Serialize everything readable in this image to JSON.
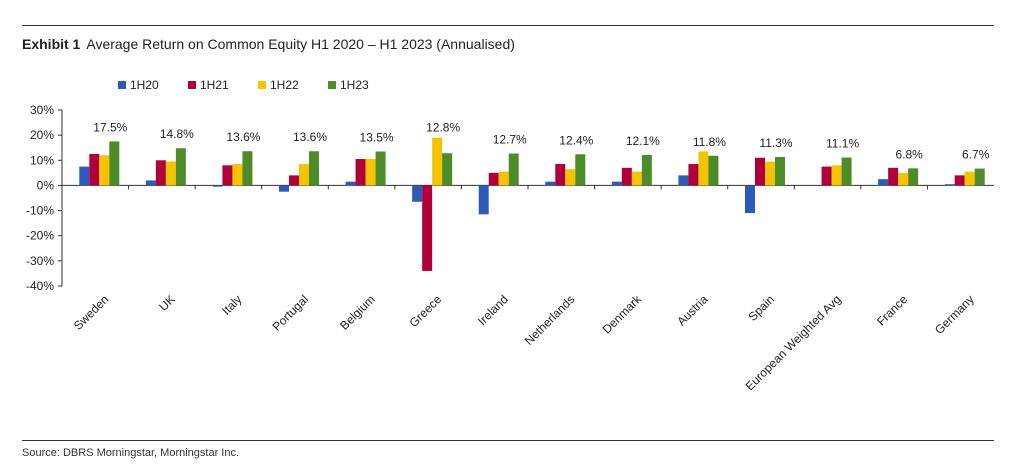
{
  "header": {
    "exhibit": "Exhibit 1",
    "title": "Average Return on Common Equity H1 2020 – H1 2023 (Annualised)"
  },
  "footer": {
    "source": "Source: DBRS Morningstar, Morningstar Inc."
  },
  "chart_data": {
    "type": "bar",
    "title": "Average Return on Common Equity H1 2020 – H1 2023 (Annualised)",
    "xlabel": "",
    "ylabel": "",
    "ylim": [
      -40,
      30
    ],
    "yticks": [
      "30%",
      "20%",
      "10%",
      "0%",
      "-10%",
      "-20%",
      "-30%",
      "-40%"
    ],
    "ytick_values": [
      30,
      20,
      10,
      0,
      -10,
      -20,
      -30,
      -40
    ],
    "grid": false,
    "legend_position": "top-left",
    "categories": [
      "Sweden",
      "UK",
      "Italy",
      "Portugal",
      "Belgium",
      "Greece",
      "Ireland",
      "Netherlands",
      "Denmark",
      "Austria",
      "Spain",
      "European Weighted Avg",
      "France",
      "Germany"
    ],
    "series": [
      {
        "name": "1H20",
        "color": "#2E5BB8",
        "values": [
          7.5,
          2.0,
          -0.5,
          -2.5,
          1.5,
          -6.5,
          -11.5,
          1.5,
          1.5,
          4.0,
          -11.0,
          0.0,
          2.5,
          0.5
        ]
      },
      {
        "name": "1H21",
        "color": "#B0003A",
        "values": [
          12.5,
          10.0,
          8.0,
          4.0,
          10.5,
          -34.0,
          5.0,
          8.5,
          7.0,
          8.5,
          11.0,
          7.5,
          7.0,
          4.0
        ]
      },
      {
        "name": "1H22",
        "color": "#F5C400",
        "values": [
          12.0,
          9.5,
          8.5,
          8.5,
          10.5,
          19.0,
          5.5,
          6.5,
          5.5,
          13.5,
          9.5,
          8.0,
          5.0,
          5.5
        ]
      },
      {
        "name": "1H23",
        "color": "#4E8C2A",
        "values": [
          17.5,
          14.8,
          13.6,
          13.6,
          13.5,
          12.8,
          12.7,
          12.4,
          12.1,
          11.8,
          11.3,
          11.1,
          6.8,
          6.7
        ]
      }
    ],
    "data_labels": [
      "17.5%",
      "14.8%",
      "13.6%",
      "13.6%",
      "13.5%",
      "12.8%",
      "12.7%",
      "12.4%",
      "12.1%",
      "11.8%",
      "11.3%",
      "11.1%",
      "6.8%",
      "6.7%"
    ]
  }
}
